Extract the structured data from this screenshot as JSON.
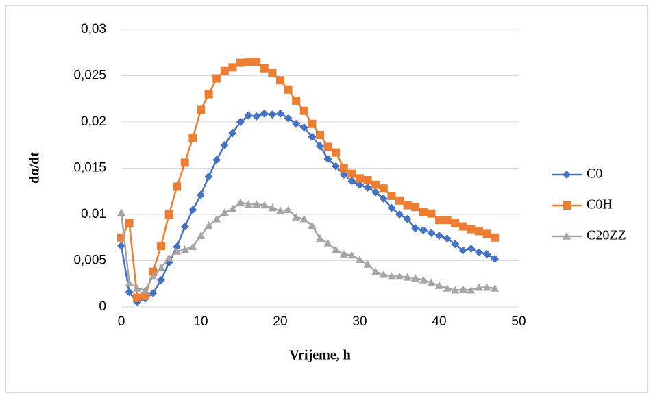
{
  "chart_data": {
    "type": "scatter-line",
    "xlabel": "Vrijeme, h",
    "ylabel": "dα/dt",
    "x": [
      0,
      1,
      2,
      3,
      4,
      5,
      6,
      7,
      8,
      9,
      10,
      11,
      12,
      13,
      14,
      15,
      16,
      17,
      18,
      19,
      20,
      21,
      22,
      23,
      24,
      25,
      26,
      27,
      28,
      29,
      30,
      31,
      32,
      33,
      34,
      35,
      36,
      37,
      38,
      39,
      40,
      41,
      42,
      43,
      44,
      45,
      46,
      47
    ],
    "series": [
      {
        "name": "C0",
        "color": "#4472c4",
        "marker": "diamond",
        "values": [
          0.0066,
          0.0016,
          0.0005,
          0.0009,
          0.0015,
          0.0029,
          0.0048,
          0.0065,
          0.0087,
          0.0105,
          0.0121,
          0.0141,
          0.0159,
          0.0175,
          0.0188,
          0.02,
          0.0207,
          0.0206,
          0.0209,
          0.0208,
          0.0209,
          0.0204,
          0.0198,
          0.0194,
          0.0184,
          0.0174,
          0.016,
          0.0152,
          0.0143,
          0.0136,
          0.0132,
          0.0129,
          0.0124,
          0.0117,
          0.0107,
          0.01,
          0.0095,
          0.0085,
          0.0083,
          0.008,
          0.0077,
          0.0074,
          0.0068,
          0.0061,
          0.0063,
          0.0059,
          0.0057,
          0.0052
        ]
      },
      {
        "name": "C0H",
        "color": "#ed7d31",
        "marker": "square",
        "values": [
          0.0075,
          0.0091,
          0.001,
          0.0012,
          0.0038,
          0.0066,
          0.01,
          0.013,
          0.0156,
          0.0183,
          0.0213,
          0.023,
          0.0247,
          0.0255,
          0.0259,
          0.0264,
          0.0265,
          0.0265,
          0.0258,
          0.0253,
          0.0245,
          0.0235,
          0.0223,
          0.0212,
          0.0198,
          0.0186,
          0.0173,
          0.0167,
          0.015,
          0.0144,
          0.0139,
          0.0137,
          0.0132,
          0.0128,
          0.012,
          0.0115,
          0.011,
          0.0108,
          0.0103,
          0.0101,
          0.0094,
          0.0094,
          0.0091,
          0.0087,
          0.0084,
          0.0082,
          0.0079,
          0.0075
        ]
      },
      {
        "name": "C20ZZ",
        "color": "#a5a5a5",
        "marker": "triangle",
        "values": [
          0.0102,
          0.0026,
          0.002,
          0.0018,
          0.0033,
          0.0042,
          0.0053,
          0.006,
          0.0062,
          0.0065,
          0.0077,
          0.0088,
          0.0095,
          0.0102,
          0.0106,
          0.0113,
          0.0111,
          0.0111,
          0.011,
          0.0107,
          0.0104,
          0.0105,
          0.0097,
          0.0095,
          0.0088,
          0.0074,
          0.0069,
          0.0062,
          0.0057,
          0.0056,
          0.0051,
          0.0046,
          0.0038,
          0.0035,
          0.0033,
          0.0033,
          0.0032,
          0.0031,
          0.0029,
          0.0026,
          0.0023,
          0.002,
          0.0018,
          0.0019,
          0.0018,
          0.0021,
          0.0021,
          0.002
        ]
      }
    ],
    "xlim": [
      0,
      50
    ],
    "xticks": [
      0,
      10,
      20,
      30,
      40,
      50
    ],
    "ylim": [
      0,
      0.03
    ],
    "yticks": [
      0,
      {
        "value": 0.005,
        "label": "0,005"
      },
      {
        "value": 0.01,
        "label": "0,01"
      },
      {
        "value": 0.015,
        "label": "0,015"
      },
      {
        "value": 0.02,
        "label": "0,02"
      },
      {
        "value": 0.025,
        "label": "0,025"
      },
      {
        "value": 0.03,
        "label": "0,03"
      }
    ],
    "grid": true,
    "legend": "right"
  }
}
